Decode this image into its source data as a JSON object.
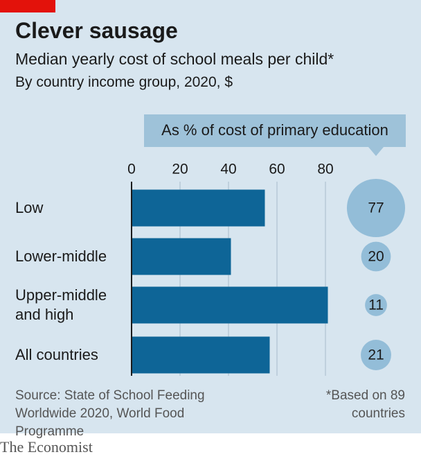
{
  "chart_data": {
    "type": "bar",
    "title": "Clever sausage",
    "subtitle": "Median yearly cost of school meals per child*",
    "description": "By country income group, 2020, $",
    "categories": [
      "Low",
      "Lower-middle",
      "Upper-middle and high",
      "All countries"
    ],
    "values": [
      55,
      41,
      81,
      57
    ],
    "color": "#0e6597",
    "xlim": [
      0,
      90
    ],
    "xticks": [
      0,
      20,
      40,
      60,
      80
    ],
    "grid": true,
    "bubble": {
      "label": "As % of cost of primary education",
      "values": [
        77,
        20,
        11,
        21
      ],
      "color": "#93bdd8"
    },
    "source": "Source: State of School Feeding Worldwide 2020, World Food Programme",
    "footnote": "*Based on 89 countries",
    "brand": "The Economist"
  }
}
